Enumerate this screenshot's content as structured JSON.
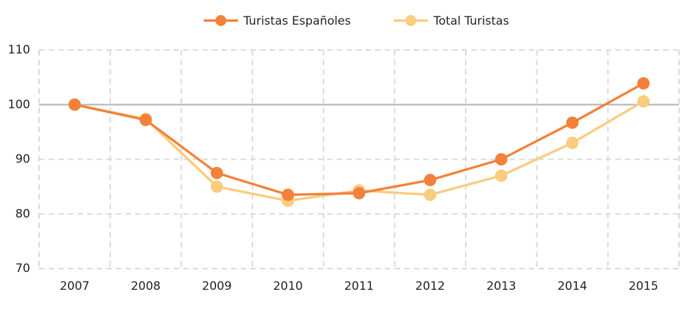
{
  "chart_data": {
    "type": "line",
    "categories": [
      "2007",
      "2008",
      "2009",
      "2010",
      "2011",
      "2012",
      "2013",
      "2014",
      "2015"
    ],
    "series": [
      {
        "name": "Turistas Españoles",
        "color": "#f3813a",
        "values": [
          100,
          97.2,
          87.5,
          83.5,
          83.8,
          86.2,
          90.0,
          96.7,
          103.9
        ]
      },
      {
        "name": "Total Turistas",
        "color": "#f9cc7e",
        "values": [
          100,
          97.4,
          85.0,
          82.4,
          84.3,
          83.5,
          87.0,
          93.0,
          100.6
        ]
      }
    ],
    "ylim": [
      70,
      110
    ],
    "yticks": [
      70,
      80,
      90,
      100,
      110
    ],
    "grid": true,
    "reference_line": 100,
    "legend": "top"
  }
}
